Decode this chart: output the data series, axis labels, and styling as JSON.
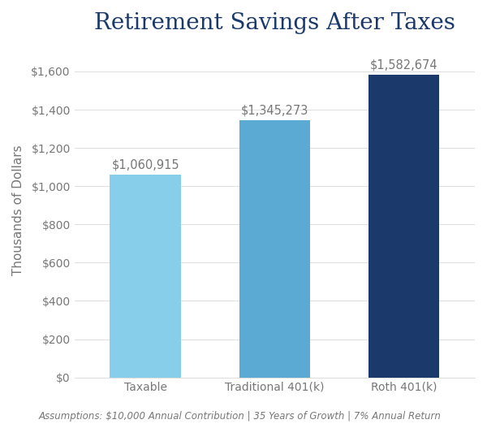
{
  "title": "Retirement Savings After Taxes",
  "categories": [
    "Taxable",
    "Traditional 401(k)",
    "Roth 401(k)"
  ],
  "values": [
    1060915,
    1345273,
    1582674
  ],
  "bar_colors": [
    "#87CEEB",
    "#5BAAD4",
    "#1B3A6B"
  ],
  "ylabel": "Thousands of Dollars",
  "ylim": [
    0,
    1750000
  ],
  "yticks": [
    0,
    200000,
    400000,
    600000,
    800000,
    1000000,
    1200000,
    1400000,
    1600000
  ],
  "ytick_labels": [
    "$0",
    "$200",
    "$400",
    "$600",
    "$800",
    "$1,000",
    "$1,200",
    "$1,400",
    "$1,600"
  ],
  "bar_labels": [
    "$1,060,915",
    "$1,345,273",
    "$1,582,674"
  ],
  "footnote": "Assumptions: $10,000 Annual Contribution | 35 Years of Growth | 7% Annual Return",
  "background_color": "#FFFFFF",
  "title_color": "#1B3A6B",
  "label_color": "#777777",
  "grid_color": "#DDDDDD",
  "title_fontsize": 20,
  "axis_label_fontsize": 11,
  "tick_fontsize": 10,
  "bar_label_fontsize": 10.5,
  "footnote_fontsize": 8.5,
  "bar_width": 0.55
}
